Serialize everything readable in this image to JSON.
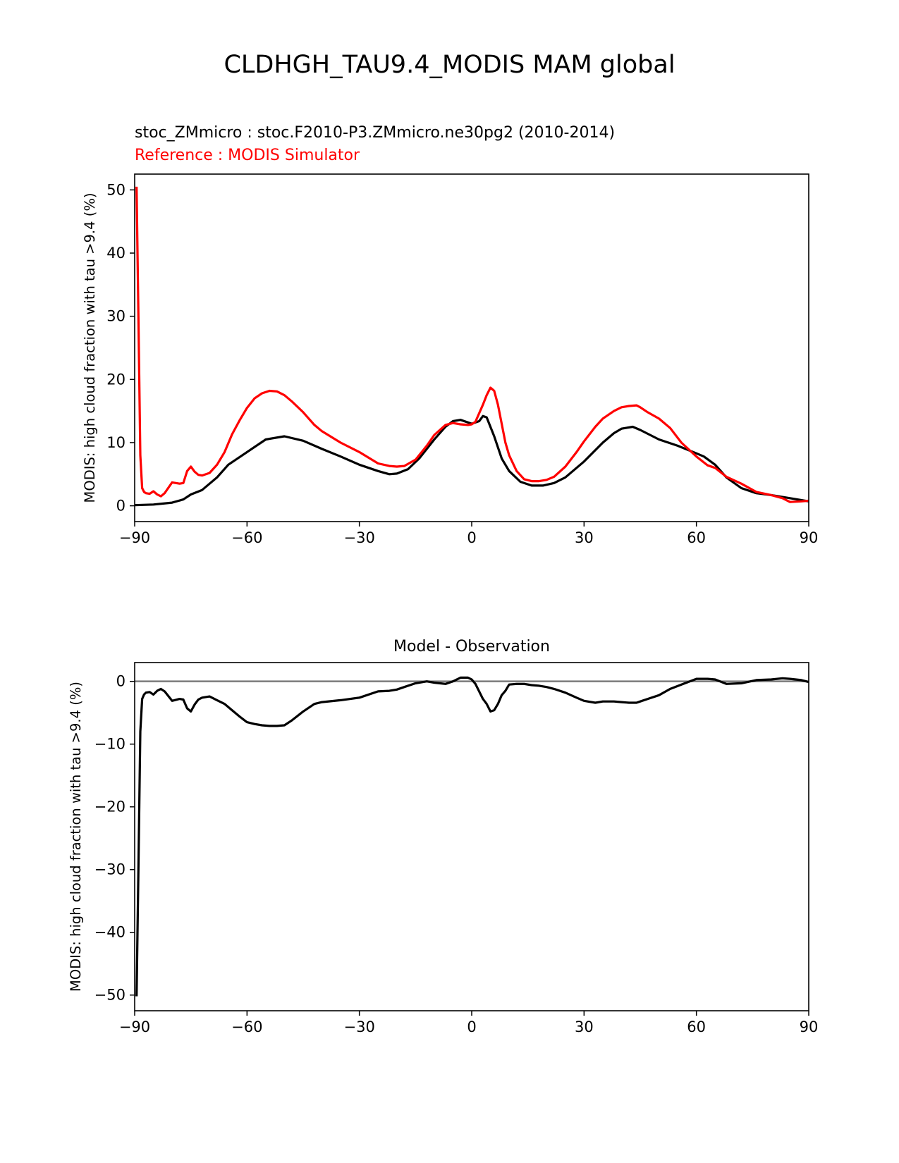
{
  "figure": {
    "title": "CLDHGH_TAU9.4_MODIS MAM global",
    "test_label": "stoc_ZMmicro : stoc.F2010-P3.ZMmicro.ne30pg2 (2010-2014)",
    "ref_label": "Reference : MODIS Simulator"
  },
  "colors": {
    "test": "#000000",
    "reference": "#ff0000",
    "zero_line": "#808080"
  },
  "chart_data": [
    {
      "type": "line",
      "title": "",
      "ylabel": "MODIS: high cloud fraction with tau >9.4 (%)",
      "xlabel": "",
      "xlim": [
        -90,
        90
      ],
      "ylim": [
        -2.5,
        52.5
      ],
      "xticks": [
        -90,
        -60,
        -30,
        0,
        30,
        60,
        90
      ],
      "xtick_labels": [
        "−90",
        "−60",
        "−30",
        "0",
        "30",
        "60",
        "90"
      ],
      "yticks": [
        0,
        10,
        20,
        30,
        40,
        50
      ],
      "ytick_labels": [
        "0",
        "10",
        "20",
        "30",
        "40",
        "50"
      ],
      "series": [
        {
          "color": "#000000",
          "x": [
            -90,
            -85,
            -80,
            -77,
            -75,
            -72,
            -68,
            -65,
            -60,
            -55,
            -50,
            -45,
            -40,
            -35,
            -30,
            -25,
            -22,
            -20,
            -17,
            -14,
            -10,
            -7,
            -5,
            -3,
            0,
            2,
            3,
            4,
            6,
            8,
            10,
            13,
            16,
            19,
            22,
            25,
            30,
            35,
            38,
            40,
            43,
            45,
            50,
            55,
            60,
            62,
            65,
            68,
            72,
            76,
            80,
            85,
            90
          ],
          "y": [
            0.1,
            0.2,
            0.5,
            1.0,
            1.8,
            2.5,
            4.5,
            6.5,
            8.5,
            10.5,
            11.0,
            10.3,
            9.0,
            7.8,
            6.5,
            5.5,
            5.0,
            5.1,
            5.8,
            7.5,
            10.5,
            12.5,
            13.4,
            13.6,
            13.0,
            13.4,
            14.2,
            14.0,
            11.0,
            7.5,
            5.5,
            3.8,
            3.2,
            3.2,
            3.6,
            4.5,
            7.0,
            10.0,
            11.5,
            12.2,
            12.5,
            12.0,
            10.5,
            9.5,
            8.3,
            7.8,
            6.5,
            4.5,
            2.8,
            2.0,
            1.7,
            1.2,
            0.7
          ]
        },
        {
          "color": "#ff0000",
          "x": [
            -89.5,
            -89,
            -88.5,
            -88,
            -87.5,
            -87,
            -86,
            -85,
            -84,
            -83,
            -82,
            -80,
            -78,
            -77,
            -76,
            -75,
            -74,
            -73,
            -72,
            -70,
            -68,
            -66,
            -64,
            -62,
            -60,
            -58,
            -56,
            -54,
            -52,
            -50,
            -48,
            -45,
            -42,
            -40,
            -35,
            -30,
            -25,
            -22,
            -20,
            -18,
            -15,
            -12,
            -10,
            -7,
            -5,
            -3,
            -1,
            0,
            1,
            3,
            4,
            5,
            6,
            7,
            8,
            9,
            10,
            12,
            14,
            16,
            18,
            20,
            22,
            25,
            28,
            30,
            33,
            35,
            38,
            40,
            42,
            44,
            45,
            47,
            50,
            53,
            56,
            60,
            63,
            65,
            68,
            72,
            76,
            80,
            83,
            85,
            88,
            90
          ],
          "y": [
            50.5,
            30.0,
            8.0,
            2.8,
            2.2,
            2.0,
            1.9,
            2.3,
            1.8,
            1.5,
            2.0,
            3.7,
            3.5,
            3.6,
            5.5,
            6.2,
            5.4,
            4.9,
            4.8,
            5.2,
            6.5,
            8.5,
            11.3,
            13.5,
            15.5,
            17.0,
            17.8,
            18.2,
            18.1,
            17.5,
            16.5,
            14.8,
            12.8,
            11.8,
            10.0,
            8.5,
            6.7,
            6.3,
            6.2,
            6.3,
            7.3,
            9.5,
            11.2,
            12.8,
            13.1,
            12.9,
            12.8,
            12.9,
            13.3,
            16.0,
            17.5,
            18.7,
            18.2,
            16.0,
            13.0,
            10.0,
            8.0,
            5.5,
            4.2,
            3.9,
            3.9,
            4.1,
            4.6,
            6.2,
            8.5,
            10.2,
            12.5,
            13.8,
            15.0,
            15.6,
            15.8,
            15.9,
            15.6,
            14.8,
            13.8,
            12.3,
            10.0,
            7.8,
            6.4,
            6.0,
            4.6,
            3.5,
            2.2,
            1.7,
            1.2,
            0.6,
            0.7,
            0.8
          ]
        }
      ]
    },
    {
      "type": "line",
      "title": "Model - Observation",
      "ylabel": "MODIS: high cloud fraction with tau >9.4 (%)",
      "xlabel": "",
      "xlim": [
        -90,
        90
      ],
      "ylim": [
        -52.5,
        3.0
      ],
      "xticks": [
        -90,
        -60,
        -30,
        0,
        30,
        60,
        90
      ],
      "xtick_labels": [
        "−90",
        "−60",
        "−30",
        "0",
        "30",
        "60",
        "90"
      ],
      "yticks": [
        0,
        -10,
        -20,
        -30,
        -40,
        -50
      ],
      "ytick_labels": [
        "0",
        "−10",
        "−20",
        "−30",
        "−40",
        "−50"
      ],
      "zero_line": 0,
      "series": [
        {
          "color": "#000000",
          "x": [
            -89.5,
            -89,
            -88.5,
            -88,
            -87.5,
            -87,
            -86,
            -85,
            -84,
            -83,
            -82,
            -80,
            -78,
            -77,
            -76,
            -75,
            -74,
            -73,
            -72,
            -70,
            -68,
            -66,
            -64,
            -62,
            -60,
            -58,
            -56,
            -54,
            -52,
            -50,
            -48,
            -45,
            -42,
            -40,
            -35,
            -30,
            -25,
            -22,
            -20,
            -18,
            -15,
            -12,
            -10,
            -7,
            -5,
            -3,
            -1,
            0,
            1,
            3,
            4,
            5,
            6,
            7,
            8,
            9,
            10,
            12,
            14,
            16,
            18,
            20,
            22,
            25,
            28,
            30,
            33,
            35,
            38,
            40,
            42,
            44,
            45,
            47,
            50,
            53,
            56,
            60,
            63,
            65,
            68,
            72,
            76,
            80,
            83,
            85,
            88,
            90
          ],
          "y": [
            -50.2,
            -30.0,
            -8.0,
            -2.8,
            -2.1,
            -1.8,
            -1.7,
            -2.1,
            -1.5,
            -1.2,
            -1.6,
            -3.1,
            -2.8,
            -2.9,
            -4.3,
            -4.8,
            -3.7,
            -2.9,
            -2.6,
            -2.4,
            -3.0,
            -3.6,
            -4.6,
            -5.6,
            -6.5,
            -6.8,
            -7.0,
            -7.1,
            -7.1,
            -7.0,
            -6.2,
            -4.8,
            -3.6,
            -3.3,
            -3.0,
            -2.6,
            -1.6,
            -1.5,
            -1.3,
            -0.9,
            -0.3,
            0.0,
            -0.2,
            -0.4,
            0.0,
            0.6,
            0.6,
            0.3,
            -0.4,
            -2.8,
            -3.6,
            -4.8,
            -4.6,
            -3.6,
            -2.2,
            -1.5,
            -0.5,
            -0.4,
            -0.4,
            -0.6,
            -0.7,
            -0.9,
            -1.2,
            -1.8,
            -2.6,
            -3.1,
            -3.4,
            -3.2,
            -3.2,
            -3.3,
            -3.4,
            -3.4,
            -3.2,
            -2.8,
            -2.2,
            -1.2,
            -0.5,
            0.4,
            0.4,
            0.3,
            -0.4,
            -0.3,
            0.2,
            0.3,
            0.5,
            0.4,
            0.2,
            -0.1
          ]
        }
      ]
    }
  ]
}
